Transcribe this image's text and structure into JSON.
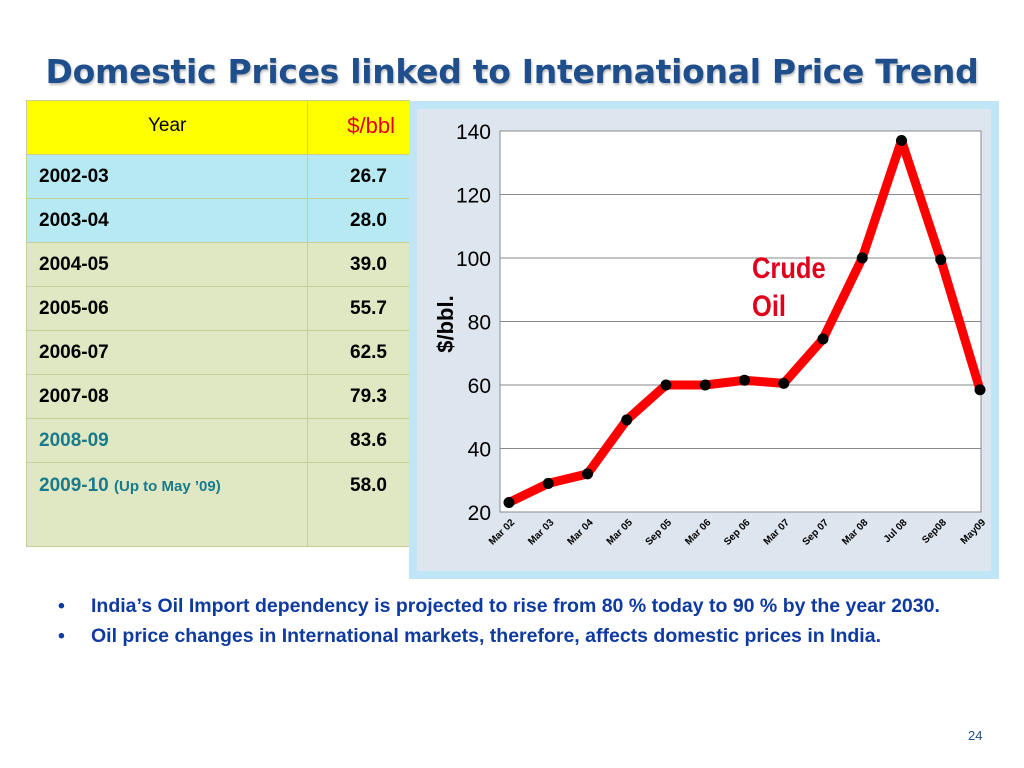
{
  "title": "Domestic Prices linked to International Price Trend",
  "table": {
    "header_year": "Year",
    "header_unit": "$/bbl",
    "rows": [
      {
        "year": "2002-03",
        "value": "26.7"
      },
      {
        "year": "2003-04",
        "value": "28.0"
      },
      {
        "year": "2004-05",
        "value": "39.0"
      },
      {
        "year": "2005-06",
        "value": "55.7"
      },
      {
        "year": "2006-07",
        "value": "62.5"
      },
      {
        "year": "2007-08",
        "value": "79.3"
      },
      {
        "year": "2008-09",
        "value": "83.6"
      },
      {
        "year": "2009-10",
        "note": "(Up to May ’09)",
        "value": "58.0"
      }
    ]
  },
  "chart_data": {
    "type": "line",
    "ylabel": "$/bbl.",
    "ylim": [
      20,
      140
    ],
    "yticks": [
      20,
      40,
      60,
      80,
      100,
      120,
      140
    ],
    "grid": true,
    "x": [
      "Mar 02",
      "Mar 03",
      "Mar 04",
      "Mar 05",
      "Sep 05",
      "Mar 06",
      "Sep 06",
      "Mar 07",
      "Sep 07",
      "Mar 08",
      "Jul 08",
      "Sep08",
      "May09"
    ],
    "series": [
      {
        "name": "Crude Oil",
        "values": [
          23,
          29,
          32,
          49,
          60,
          60,
          61.5,
          60.5,
          74.5,
          100,
          137,
          99.5,
          58.5
        ],
        "color": "#ff0000",
        "marker_color": "#000000"
      }
    ],
    "annotation": "Crude Oil",
    "annotation_color": "#e0001b"
  },
  "bullets": [
    "India’s Oil Import dependency is projected to rise from 80 % today to 90 % by the year 2030.",
    "Oil price changes in International markets, therefore, affects domestic prices in India."
  ],
  "page_number": "24"
}
